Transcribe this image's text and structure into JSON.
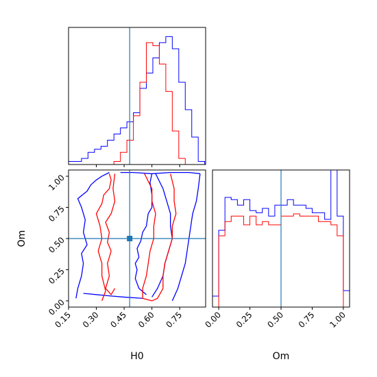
{
  "chart_data": {
    "type": "corner",
    "parameters": [
      "H0",
      "Om"
    ],
    "truth": {
      "H0": 0.48,
      "Om": 0.5
    },
    "colors": {
      "series_a": "#0000ff",
      "series_b": "#ff0000",
      "truth": "#1f77b4",
      "axes": "#000000"
    },
    "grid": false,
    "panels": [
      {
        "id": "hist-h0",
        "type": "histogram",
        "xlim": [
          0.15,
          0.89
        ],
        "ylim": [
          0,
          45
        ],
        "x_ticks_shown": false,
        "bin_edges": [
          0.15,
          0.185,
          0.22,
          0.255,
          0.29,
          0.325,
          0.36,
          0.395,
          0.43,
          0.465,
          0.5,
          0.535,
          0.57,
          0.605,
          0.64,
          0.675,
          0.71,
          0.745,
          0.78,
          0.815,
          0.85,
          0.885
        ],
        "series": [
          {
            "color_key": "series_a",
            "counts": [
              1,
              1,
              2,
              4,
              5,
              6,
              8,
              10,
              12,
              14,
              17,
              25,
              30,
              35,
              40,
              42,
              38,
              27,
              18,
              9,
              1
            ]
          },
          {
            "color_key": "series_b",
            "counts": [
              0,
              0,
              0,
              0,
              0,
              0,
              0,
              1,
              4,
              8,
              16,
              27,
              40,
              39,
              33,
              24,
              11,
              2,
              0,
              0,
              0
            ]
          }
        ]
      },
      {
        "id": "contour-h0-om",
        "type": "contour",
        "xlim": [
          0.15,
          0.89
        ],
        "ylim": [
          -0.05,
          1.05
        ],
        "xlabel": "H0",
        "ylabel": "Om",
        "x_ticks": [
          0.15,
          0.3,
          0.45,
          0.6,
          0.75
        ],
        "x_tick_labels": [
          "0.15",
          "0.30",
          "0.45",
          "0.60",
          "0.75"
        ],
        "y_ticks": [
          0.0,
          0.25,
          0.5,
          0.75,
          1.0
        ],
        "y_tick_labels": [
          "0.00",
          "0.25",
          "0.50",
          "0.75",
          "1.00"
        ],
        "contours": [
          {
            "color_key": "series_a",
            "points": [
              [
                0.57,
                0.05
              ],
              [
                0.53,
                0.1
              ],
              [
                0.51,
                0.18
              ],
              [
                0.52,
                0.25
              ],
              [
                0.51,
                0.3
              ],
              [
                0.53,
                0.35
              ],
              [
                0.52,
                0.42
              ],
              [
                0.54,
                0.48
              ],
              [
                0.55,
                0.55
              ],
              [
                0.57,
                0.6
              ],
              [
                0.58,
                0.7
              ],
              [
                0.6,
                0.75
              ],
              [
                0.6,
                0.85
              ],
              [
                0.59,
                0.95
              ],
              [
                0.6,
                1.02
              ]
            ]
          },
          {
            "color_key": "series_a",
            "points": [
              [
                0.19,
                0.02
              ],
              [
                0.2,
                0.1
              ],
              [
                0.22,
                0.2
              ],
              [
                0.23,
                0.3
              ],
              [
                0.22,
                0.38
              ],
              [
                0.25,
                0.45
              ],
              [
                0.23,
                0.55
              ],
              [
                0.24,
                0.65
              ],
              [
                0.22,
                0.75
              ],
              [
                0.2,
                0.82
              ],
              [
                0.25,
                0.88
              ],
              [
                0.27,
                0.93
              ],
              [
                0.3,
                0.97
              ],
              [
                0.33,
                1.0
              ],
              [
                0.37,
                1.03
              ]
            ]
          },
          {
            "color_key": "series_a",
            "points": [
              [
                0.23,
                0.06
              ],
              [
                0.3,
                0.05
              ],
              [
                0.37,
                0.04
              ],
              [
                0.45,
                0.03
              ],
              [
                0.55,
                0.02
              ]
            ]
          },
          {
            "color_key": "series_a",
            "points": [
              [
                0.43,
                1.03
              ],
              [
                0.5,
                1.03
              ],
              [
                0.6,
                1.02
              ],
              [
                0.7,
                1.03
              ],
              [
                0.8,
                1.03
              ],
              [
                0.86,
                1.02
              ]
            ]
          },
          {
            "color_key": "series_a",
            "points": [
              [
                0.86,
                1.02
              ],
              [
                0.85,
                0.9
              ],
              [
                0.84,
                0.8
              ],
              [
                0.82,
                0.7
              ],
              [
                0.81,
                0.6
              ],
              [
                0.8,
                0.5
              ],
              [
                0.79,
                0.4
              ],
              [
                0.78,
                0.3
              ],
              [
                0.76,
                0.2
              ],
              [
                0.74,
                0.1
              ],
              [
                0.71,
                0.0
              ]
            ]
          },
          {
            "color_key": "series_a",
            "points": [
              [
                0.62,
                1.02
              ],
              [
                0.66,
                0.9
              ],
              [
                0.68,
                0.8
              ],
              [
                0.7,
                0.7
              ],
              [
                0.7,
                0.6
              ],
              [
                0.71,
                0.5
              ],
              [
                0.69,
                0.4
              ],
              [
                0.67,
                0.3
              ],
              [
                0.66,
                0.2
              ],
              [
                0.63,
                0.1
              ],
              [
                0.6,
                0.03
              ]
            ]
          },
          {
            "color_key": "series_b",
            "points": [
              [
                0.4,
                1.02
              ],
              [
                0.39,
                0.9
              ],
              [
                0.4,
                0.8
              ],
              [
                0.38,
                0.7
              ],
              [
                0.35,
                0.63
              ],
              [
                0.37,
                0.55
              ],
              [
                0.36,
                0.47
              ],
              [
                0.38,
                0.4
              ],
              [
                0.36,
                0.3
              ],
              [
                0.37,
                0.2
              ],
              [
                0.35,
                0.1
              ],
              [
                0.38,
                0.05
              ],
              [
                0.4,
                0.1
              ]
            ]
          },
          {
            "color_key": "series_b",
            "points": [
              [
                0.33,
                0.0
              ],
              [
                0.35,
                0.08
              ],
              [
                0.33,
                0.2
              ],
              [
                0.33,
                0.3
              ],
              [
                0.31,
                0.4
              ],
              [
                0.33,
                0.5
              ],
              [
                0.32,
                0.6
              ],
              [
                0.3,
                0.7
              ],
              [
                0.33,
                0.78
              ],
              [
                0.34,
                0.85
              ],
              [
                0.37,
                0.9
              ],
              [
                0.38,
                0.97
              ],
              [
                0.37,
                1.02
              ]
            ]
          },
          {
            "color_key": "series_b",
            "points": [
              [
                0.56,
                1.02
              ],
              [
                0.6,
                0.9
              ],
              [
                0.6,
                0.8
              ],
              [
                0.62,
                0.7
              ],
              [
                0.61,
                0.6
              ],
              [
                0.61,
                0.5
              ],
              [
                0.59,
                0.4
              ],
              [
                0.58,
                0.3
              ],
              [
                0.57,
                0.2
              ],
              [
                0.55,
                0.1
              ],
              [
                0.55,
                0.02
              ],
              [
                0.6,
                0.0
              ]
            ]
          },
          {
            "color_key": "series_b",
            "points": [
              [
                0.7,
                1.02
              ],
              [
                0.72,
                0.9
              ],
              [
                0.72,
                0.8
              ],
              [
                0.73,
                0.7
              ],
              [
                0.71,
                0.6
              ],
              [
                0.71,
                0.5
              ],
              [
                0.69,
                0.4
              ],
              [
                0.67,
                0.3
              ],
              [
                0.66,
                0.2
              ],
              [
                0.66,
                0.1
              ],
              [
                0.63,
                0.02
              ],
              [
                0.6,
                0.0
              ]
            ]
          }
        ]
      },
      {
        "id": "hist-om",
        "type": "histogram",
        "xlim": [
          -0.05,
          1.05
        ],
        "ylim": [
          0,
          1.25
        ],
        "xlabel": "Om",
        "x_ticks": [
          0.0,
          0.25,
          0.5,
          0.75,
          1.0
        ],
        "x_tick_labels": [
          "0.00",
          "0.25",
          "0.50",
          "0.75",
          "1.00"
        ],
        "bin_edges": [
          -0.05,
          0.0,
          0.05,
          0.1,
          0.15,
          0.2,
          0.25,
          0.3,
          0.35,
          0.4,
          0.45,
          0.5,
          0.55,
          0.6,
          0.65,
          0.7,
          0.75,
          0.8,
          0.85,
          0.9,
          0.95,
          1.0,
          1.05
        ],
        "series": [
          {
            "color_key": "series_a",
            "counts": [
              0.1,
              0.7,
              1.0,
              0.98,
              0.93,
              0.98,
              0.88,
              0.86,
              0.9,
              0.83,
              0.93,
              0.93,
              0.98,
              0.93,
              0.93,
              0.9,
              0.86,
              0.86,
              0.8,
              1.25,
              0.83,
              0.15
            ]
          },
          {
            "color_key": "series_b",
            "counts": [
              0.0,
              0.65,
              0.78,
              0.83,
              0.83,
              0.75,
              0.83,
              0.75,
              0.78,
              0.75,
              0.75,
              0.83,
              0.83,
              0.85,
              0.83,
              0.83,
              0.83,
              0.78,
              0.78,
              0.75,
              0.65,
              0.0
            ]
          }
        ]
      }
    ]
  }
}
